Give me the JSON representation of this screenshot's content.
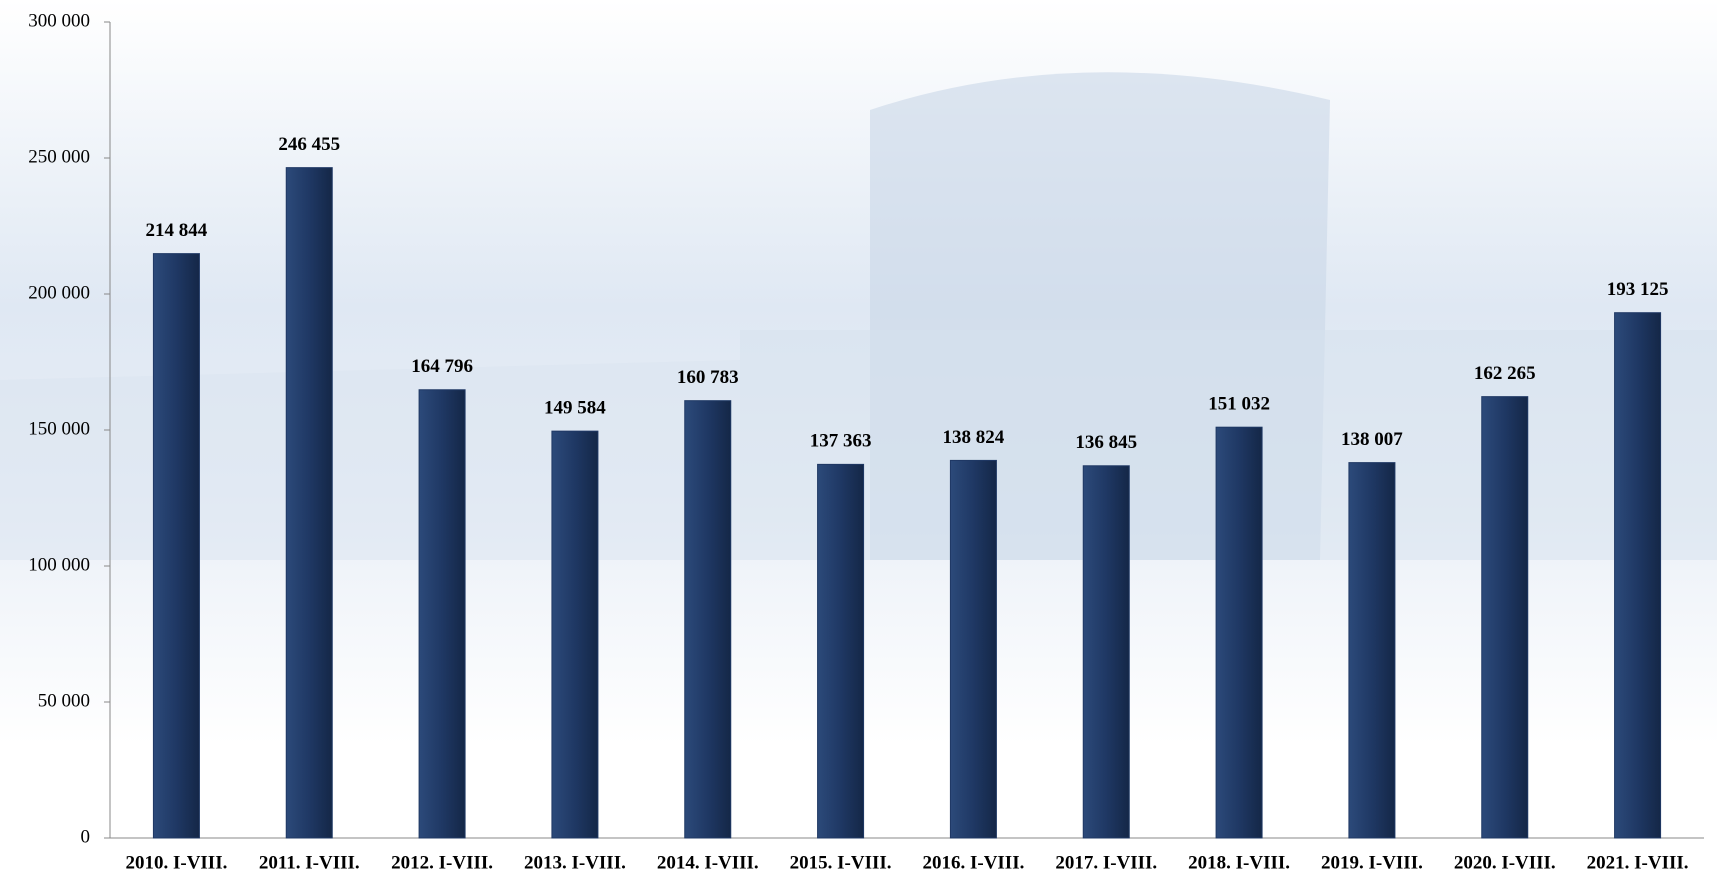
{
  "chart_data": {
    "type": "bar",
    "categories": [
      "2010. I-VIII.",
      "2011. I-VIII.",
      "2012. I-VIII.",
      "2013. I-VIII.",
      "2014. I-VIII.",
      "2015. I-VIII.",
      "2016. I-VIII.",
      "2017. I-VIII.",
      "2018. I-VIII.",
      "2019. I-VIII.",
      "2020. I-VIII.",
      "2021. I-VIII."
    ],
    "values": [
      214844,
      246455,
      164796,
      149584,
      160783,
      137363,
      138824,
      136845,
      151032,
      138007,
      162265,
      193125
    ],
    "value_labels": [
      "214 844",
      "246 455",
      "164 796",
      "149 584",
      "160 783",
      "137 363",
      "138 824",
      "136 845",
      "151 032",
      "138 007",
      "162 265",
      "193 125"
    ],
    "color": "#1f3864",
    "ylim": [
      0,
      300000
    ],
    "yticks": [
      {
        "value": 0,
        "label": "0"
      },
      {
        "value": 50000,
        "label": "50 000"
      },
      {
        "value": 100000,
        "label": "100 000"
      },
      {
        "value": 150000,
        "label": "150 000"
      },
      {
        "value": 200000,
        "label": "200 000"
      },
      {
        "value": 250000,
        "label": "250 000"
      },
      {
        "value": 300000,
        "label": "300 000"
      }
    ]
  }
}
